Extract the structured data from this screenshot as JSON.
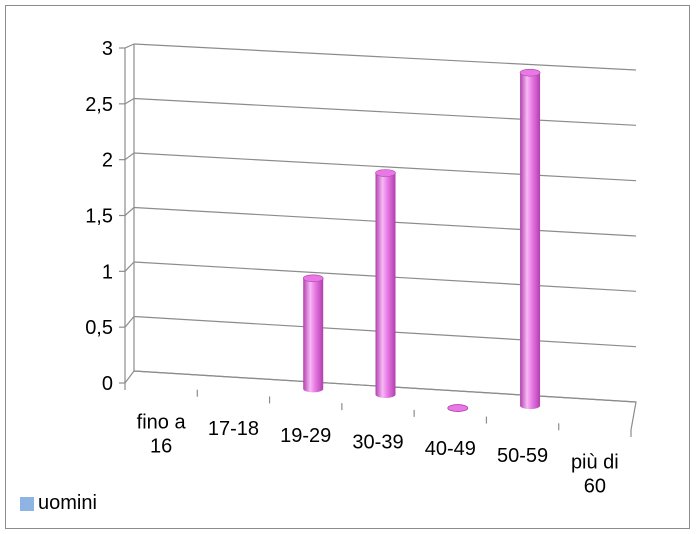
{
  "chart_data": {
    "type": "bar",
    "style": "3d-cylinder",
    "categories": [
      "fino a 16",
      "17-18",
      "19-29",
      "30-39",
      "40-49",
      "50-59",
      "più di 60"
    ],
    "category_lines": [
      [
        "fino a",
        "16"
      ],
      [
        "17-18"
      ],
      [
        "19-29"
      ],
      [
        "30-39"
      ],
      [
        "40-49"
      ],
      [
        "50-59"
      ],
      [
        "più di",
        "60"
      ]
    ],
    "series": [
      {
        "name": "uomini",
        "values": [
          0,
          0,
          1,
          2,
          0,
          3,
          0
        ]
      }
    ],
    "ylim": [
      0,
      3
    ],
    "yticks": [
      "0",
      "0,5",
      "1",
      "1,5",
      "2",
      "2,5",
      "3"
    ],
    "grid": true,
    "legend_position": "bottom-left",
    "colors": {
      "legend_swatch": "#8eb4e3",
      "bar_light": "#f7b9f5",
      "bar_mid": "#e879e4",
      "bar_dark": "#b13fae",
      "gridline": "#8c8c8c"
    }
  }
}
